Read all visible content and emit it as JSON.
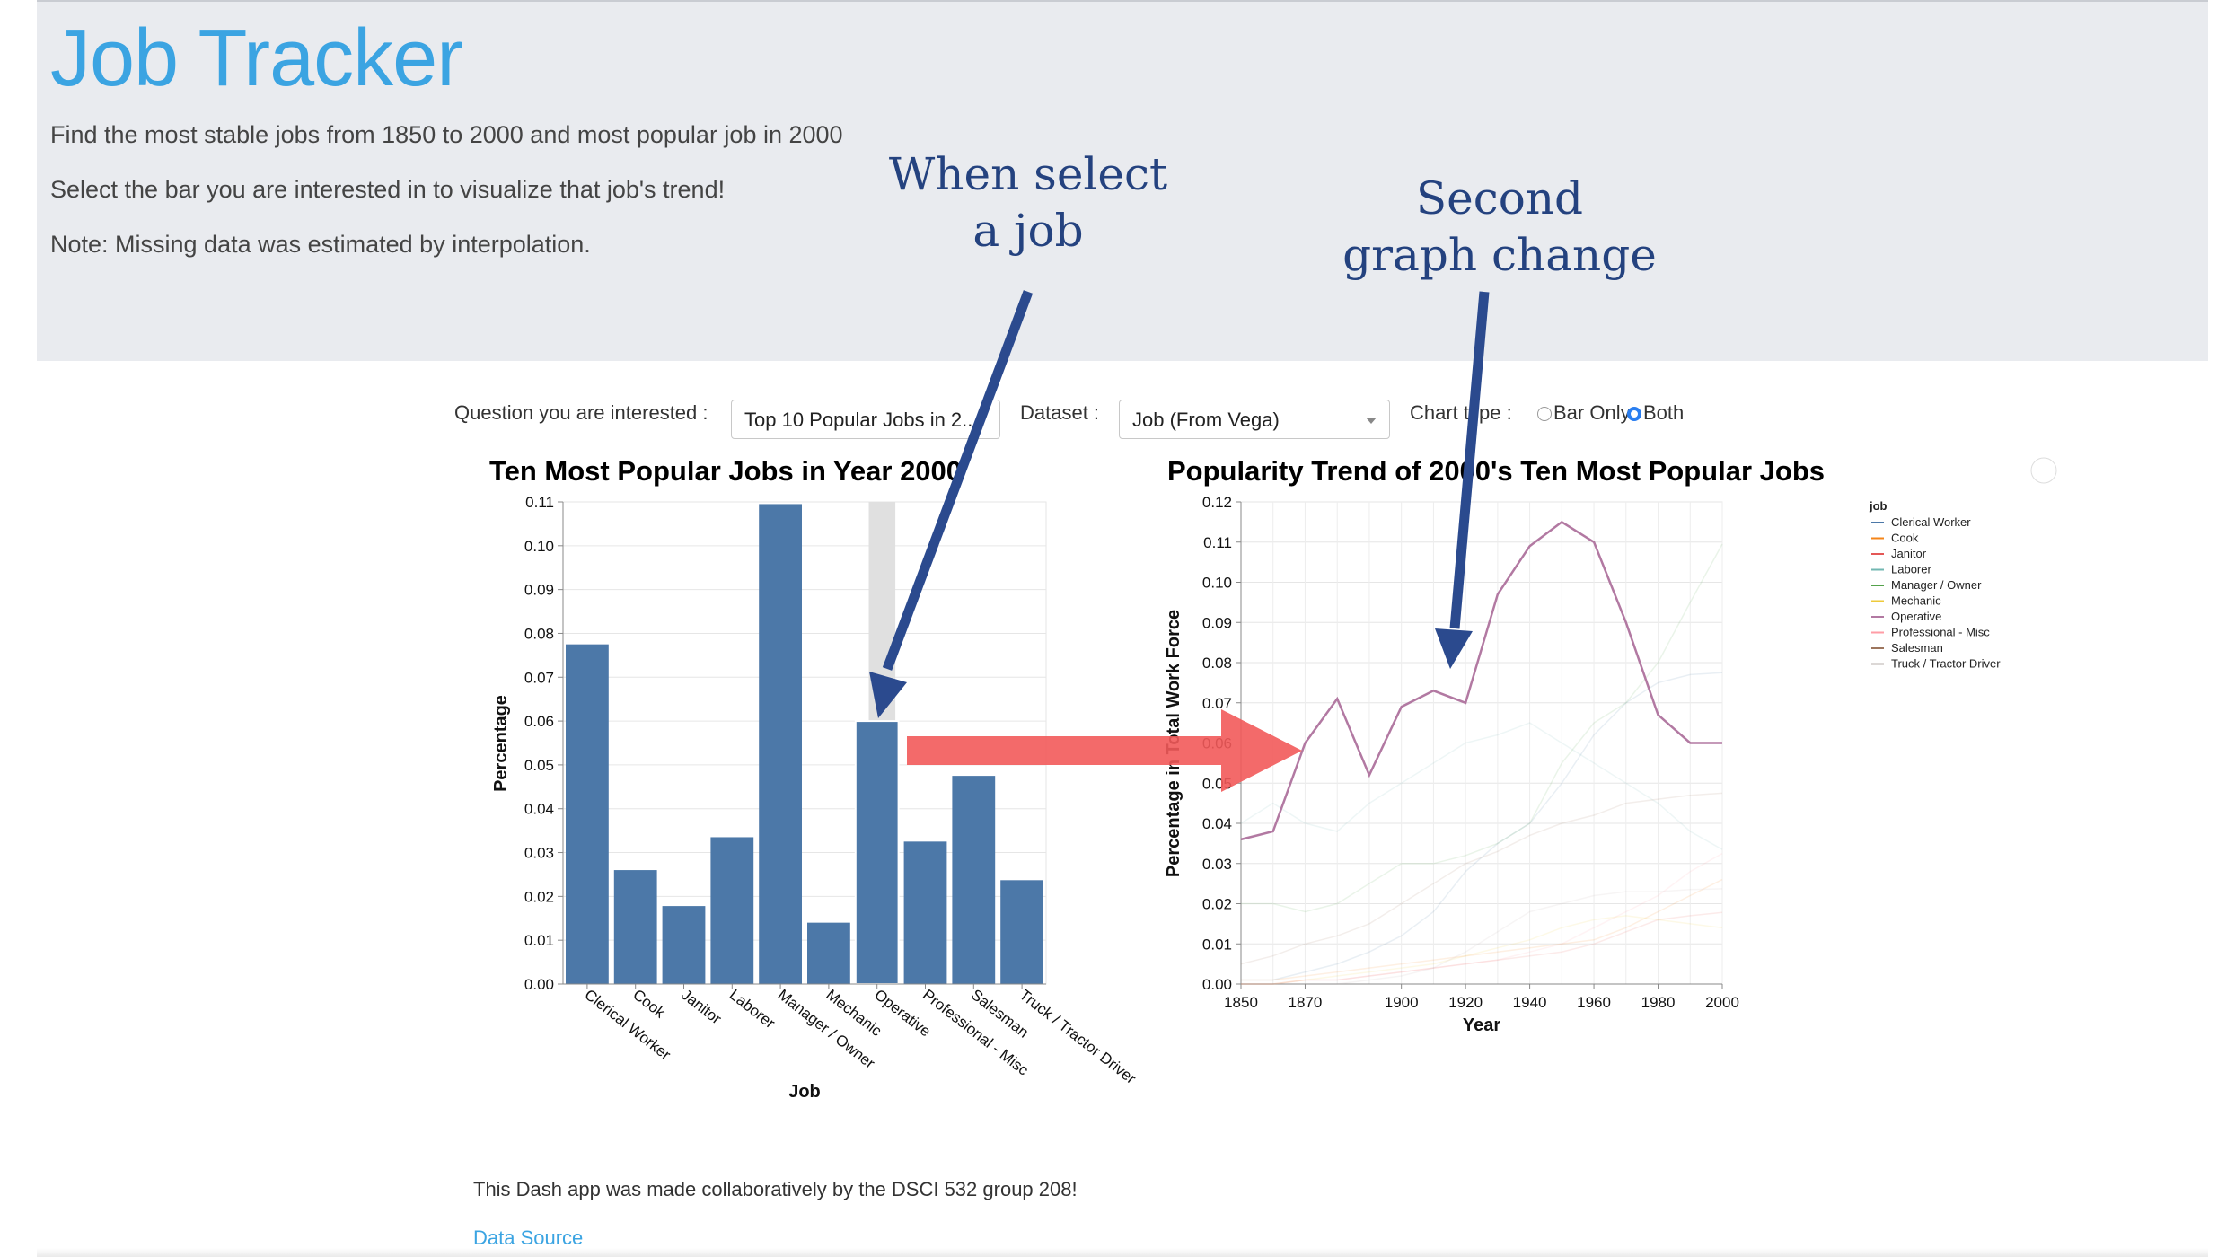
{
  "header": {
    "title": "Job Tracker",
    "lines": [
      "Find the most stable jobs from 1850 to 2000 and most popular job in 2000",
      "Select the bar you are interested in to visualize that job's trend!",
      "Note: Missing data was estimated by interpolation."
    ]
  },
  "annotations": {
    "select_job": [
      "When select",
      "a job"
    ],
    "graph_change": [
      "Second",
      "graph change"
    ]
  },
  "controls": {
    "question_label": "Question you are interested :",
    "question_value": "Top 10 Popular Jobs in 2...",
    "dataset_label": "Dataset :",
    "dataset_value": "Job (From Vega)",
    "chart_type_label": "Chart type :",
    "chart_type_options": [
      "Bar Only",
      "Both"
    ],
    "chart_type_selected": "Both"
  },
  "colors": {
    "bar": "#4c78a8",
    "selected_highlight": "#e0e0e0",
    "selected_line": "#c490b8",
    "annotation_arrow": "#2b4a8e",
    "red_arrow": "#f25a5a",
    "title_blue": "#3ba4e2"
  },
  "chart_data": [
    {
      "type": "bar",
      "title": "Ten Most Popular Jobs in Year 2000",
      "xlabel": "Job",
      "ylabel": "Percentage",
      "ylim": [
        0,
        0.11
      ],
      "yticks": [
        "0.00",
        "0.01",
        "0.02",
        "0.03",
        "0.04",
        "0.05",
        "0.06",
        "0.07",
        "0.08",
        "0.09",
        "0.10",
        "0.11"
      ],
      "categories": [
        "Clerical Worker",
        "Cook",
        "Janitor",
        "Laborer",
        "Manager / Owner",
        "Mechanic",
        "Operative",
        "Professional - Misc",
        "Salesman",
        "Truck / Tractor Driver"
      ],
      "values": [
        0.0775,
        0.026,
        0.0178,
        0.0335,
        0.1095,
        0.014,
        0.06,
        0.0325,
        0.0475,
        0.0237
      ],
      "selected": "Operative",
      "grid": true
    },
    {
      "type": "line",
      "title": "Popularity Trend of 2000's Ten Most Popular Jobs",
      "xlabel": "Year",
      "ylabel": "Percentage in Total Work Force",
      "xlim": [
        1850,
        2000
      ],
      "ylim": [
        0,
        0.12
      ],
      "xticks": [
        "1850",
        "1870",
        "1900",
        "1920",
        "1940",
        "1960",
        "1980",
        "2000"
      ],
      "yticks": [
        "0.00",
        "0.01",
        "0.02",
        "0.03",
        "0.04",
        "0.05",
        "0.06",
        "0.07",
        "0.08",
        "0.09",
        "0.10",
        "0.11",
        "0.12"
      ],
      "x": [
        1850,
        1860,
        1870,
        1880,
        1890,
        1900,
        1910,
        1920,
        1930,
        1940,
        1950,
        1960,
        1970,
        1980,
        1990,
        2000
      ],
      "legend_title": "job",
      "legend_placement": "right",
      "legend": [
        "Clerical Worker",
        "Cook",
        "Janitor",
        "Laborer",
        "Manager / Owner",
        "Mechanic",
        "Operative",
        "Professional - Misc",
        "Salesman",
        "Truck / Tractor Driver"
      ],
      "legend_colors": [
        "#4c78a8",
        "#f58518",
        "#e45756",
        "#72b7b2",
        "#54a24b",
        "#eeca3b",
        "#b279a2",
        "#ff9da6",
        "#9d755d",
        "#bab0ac"
      ],
      "selected": "Operative",
      "series": [
        {
          "name": "Clerical Worker",
          "values": [
            0.001,
            0.001,
            0.003,
            0.005,
            0.008,
            0.012,
            0.018,
            0.028,
            0.035,
            0.04,
            0.05,
            0.062,
            0.07,
            0.075,
            0.077,
            0.0775
          ]
        },
        {
          "name": "Cook",
          "values": [
            0.001,
            0.001,
            0.002,
            0.003,
            0.004,
            0.005,
            0.006,
            0.007,
            0.008,
            0.009,
            0.01,
            0.011,
            0.014,
            0.018,
            0.022,
            0.026
          ]
        },
        {
          "name": "Janitor",
          "values": [
            0.0,
            0.0,
            0.001,
            0.001,
            0.002,
            0.003,
            0.004,
            0.005,
            0.006,
            0.007,
            0.008,
            0.01,
            0.013,
            0.016,
            0.017,
            0.0178
          ]
        },
        {
          "name": "Laborer",
          "values": [
            0.04,
            0.045,
            0.04,
            0.038,
            0.045,
            0.05,
            0.055,
            0.06,
            0.062,
            0.065,
            0.06,
            0.055,
            0.05,
            0.045,
            0.038,
            0.0335
          ]
        },
        {
          "name": "Manager / Owner",
          "values": [
            0.02,
            0.02,
            0.018,
            0.02,
            0.025,
            0.03,
            0.03,
            0.032,
            0.035,
            0.04,
            0.055,
            0.065,
            0.07,
            0.08,
            0.095,
            0.1095
          ]
        },
        {
          "name": "Mechanic",
          "values": [
            0.0,
            0.0,
            0.001,
            0.002,
            0.003,
            0.004,
            0.005,
            0.007,
            0.009,
            0.011,
            0.014,
            0.016,
            0.017,
            0.016,
            0.015,
            0.014
          ]
        },
        {
          "name": "Operative",
          "values": [
            0.036,
            0.038,
            0.06,
            0.071,
            0.052,
            0.069,
            0.073,
            0.07,
            0.097,
            0.109,
            0.115,
            0.11,
            0.09,
            0.067,
            0.06,
            0.06
          ]
        },
        {
          "name": "Professional - Misc",
          "values": [
            0.0,
            0.0,
            0.001,
            0.001,
            0.002,
            0.003,
            0.004,
            0.005,
            0.006,
            0.008,
            0.01,
            0.014,
            0.018,
            0.022,
            0.028,
            0.0325
          ]
        },
        {
          "name": "Salesman",
          "values": [
            0.005,
            0.007,
            0.01,
            0.012,
            0.015,
            0.02,
            0.025,
            0.03,
            0.033,
            0.037,
            0.04,
            0.042,
            0.045,
            0.046,
            0.047,
            0.0475
          ]
        },
        {
          "name": "Truck / Tractor Driver",
          "values": [
            0.0,
            0.0,
            0.0,
            0.0,
            0.001,
            0.002,
            0.004,
            0.008,
            0.013,
            0.018,
            0.02,
            0.022,
            0.023,
            0.023,
            0.0235,
            0.0237
          ]
        }
      ]
    }
  ],
  "footer": {
    "credit": "This Dash app was made collaboratively by the DSCI 532 group 208!",
    "link": "Data Source"
  }
}
